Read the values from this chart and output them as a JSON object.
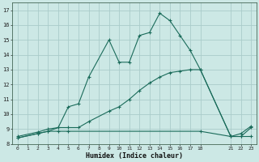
{
  "xlabel": "Humidex (Indice chaleur)",
  "bg_color": "#cce8e5",
  "grid_color": "#aaccca",
  "line_color": "#1a6b5a",
  "xlim": [
    -0.5,
    23.5
  ],
  "ylim": [
    8.0,
    17.5
  ],
  "xticks": [
    0,
    1,
    2,
    3,
    4,
    5,
    6,
    7,
    8,
    9,
    10,
    11,
    12,
    13,
    14,
    15,
    16,
    17,
    18,
    21,
    22,
    23
  ],
  "yticks": [
    8,
    9,
    10,
    11,
    12,
    13,
    14,
    15,
    16,
    17
  ],
  "line1_x": [
    0,
    2,
    3,
    4,
    5,
    6,
    7,
    9,
    10,
    11,
    12,
    13,
    14,
    15,
    16,
    17,
    18,
    21,
    22,
    23
  ],
  "line1_y": [
    8.5,
    8.8,
    9.0,
    9.1,
    10.5,
    10.7,
    12.5,
    15.0,
    13.5,
    13.5,
    15.3,
    15.5,
    16.8,
    16.3,
    15.3,
    14.3,
    13.0,
    8.5,
    8.7,
    9.2
  ],
  "line2_x": [
    0,
    2,
    3,
    4,
    5,
    18,
    21,
    22,
    23
  ],
  "line2_y": [
    8.4,
    8.7,
    8.85,
    8.85,
    8.85,
    8.85,
    8.5,
    8.5,
    8.5
  ],
  "line3_x": [
    0,
    2,
    3,
    4,
    5,
    6,
    7,
    9,
    10,
    11,
    12,
    13,
    14,
    15,
    16,
    17,
    18,
    21,
    22,
    23
  ],
  "line3_y": [
    8.4,
    8.7,
    8.85,
    9.1,
    9.1,
    9.1,
    9.5,
    10.2,
    10.5,
    11.0,
    11.6,
    12.1,
    12.5,
    12.8,
    12.9,
    13.0,
    13.0,
    8.5,
    8.5,
    9.1
  ]
}
